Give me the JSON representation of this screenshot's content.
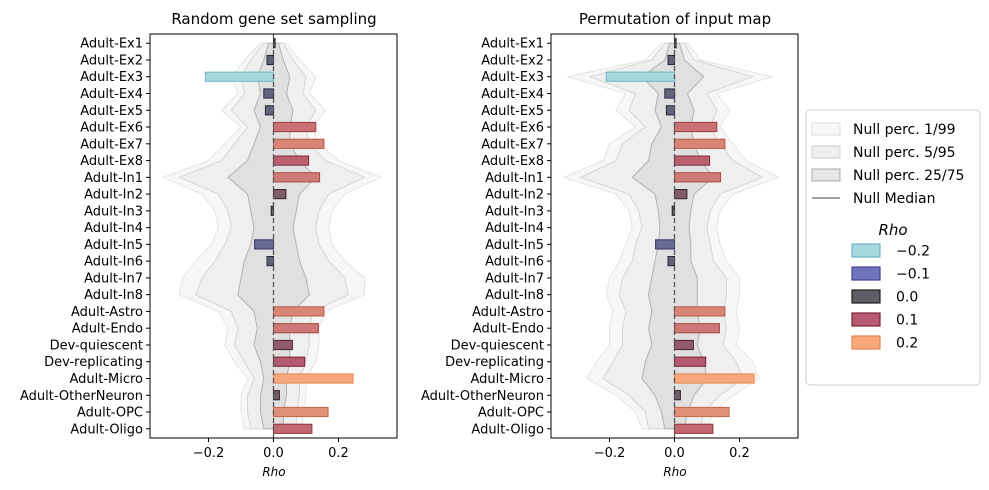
{
  "chart_data": [
    {
      "type": "bar",
      "orientation": "horizontal",
      "title": "Random gene set sampling",
      "xlabel": "Rho",
      "xlim": [
        -0.38,
        0.38
      ],
      "xticks": [
        -0.2,
        0.0,
        0.2
      ],
      "xtick_labels": [
        "−0.2",
        "0.0",
        "0.2"
      ],
      "categories": [
        "Adult-Ex1",
        "Adult-Ex2",
        "Adult-Ex3",
        "Adult-Ex4",
        "Adult-Ex5",
        "Adult-Ex6",
        "Adult-Ex7",
        "Adult-Ex8",
        "Adult-In1",
        "Adult-In2",
        "Adult-In3",
        "Adult-In4",
        "Adult-In5",
        "Adult-In6",
        "Adult-In7",
        "Adult-In8",
        "Adult-Astro",
        "Adult-Endo",
        "Dev-quiescent",
        "Dev-replicating",
        "Adult-Micro",
        "Adult-OtherNeuron",
        "Adult-OPC",
        "Adult-Oligo"
      ],
      "values": [
        0.005,
        -0.02,
        -0.21,
        -0.03,
        -0.025,
        0.13,
        0.155,
        0.108,
        0.142,
        0.038,
        -0.007,
        0.0,
        -0.058,
        -0.02,
        0.0,
        0.0,
        0.155,
        0.138,
        0.058,
        0.096,
        0.245,
        0.018,
        0.168,
        0.118
      ],
      "null_bands": {
        "p1_99": [
          [
            -0.04,
            0.04
          ],
          [
            -0.09,
            0.08
          ],
          [
            -0.13,
            0.13
          ],
          [
            -0.11,
            0.11
          ],
          [
            -0.16,
            0.16
          ],
          [
            -0.1,
            0.12
          ],
          [
            -0.15,
            0.14
          ],
          [
            -0.2,
            0.2
          ],
          [
            -0.34,
            0.33
          ],
          [
            -0.22,
            0.22
          ],
          [
            -0.18,
            0.18
          ],
          [
            -0.17,
            0.17
          ],
          [
            -0.19,
            0.18
          ],
          [
            -0.24,
            0.22
          ],
          [
            -0.28,
            0.28
          ],
          [
            -0.29,
            0.28
          ],
          [
            -0.17,
            0.16
          ],
          [
            -0.14,
            0.14
          ],
          [
            -0.15,
            0.14
          ],
          [
            -0.12,
            0.13
          ],
          [
            -0.08,
            0.1
          ],
          [
            -0.1,
            0.1
          ],
          [
            -0.1,
            0.09
          ],
          [
            -0.09,
            0.09
          ]
        ],
        "p5_95": [
          [
            -0.03,
            0.03
          ],
          [
            -0.07,
            0.06
          ],
          [
            -0.1,
            0.1
          ],
          [
            -0.09,
            0.09
          ],
          [
            -0.13,
            0.13
          ],
          [
            -0.08,
            0.1
          ],
          [
            -0.12,
            0.11
          ],
          [
            -0.16,
            0.16
          ],
          [
            -0.29,
            0.28
          ],
          [
            -0.17,
            0.17
          ],
          [
            -0.14,
            0.14
          ],
          [
            -0.13,
            0.13
          ],
          [
            -0.15,
            0.14
          ],
          [
            -0.18,
            0.17
          ],
          [
            -0.22,
            0.22
          ],
          [
            -0.24,
            0.23
          ],
          [
            -0.13,
            0.12
          ],
          [
            -0.11,
            0.11
          ],
          [
            -0.12,
            0.11
          ],
          [
            -0.09,
            0.1
          ],
          [
            -0.06,
            0.08
          ],
          [
            -0.08,
            0.08
          ],
          [
            -0.08,
            0.07
          ],
          [
            -0.07,
            0.07
          ]
        ],
        "p25_75": [
          [
            -0.015,
            0.015
          ],
          [
            -0.03,
            0.03
          ],
          [
            -0.05,
            0.05
          ],
          [
            -0.04,
            0.04
          ],
          [
            -0.06,
            0.06
          ],
          [
            -0.04,
            0.05
          ],
          [
            -0.06,
            0.05
          ],
          [
            -0.08,
            0.08
          ],
          [
            -0.14,
            0.13
          ],
          [
            -0.08,
            0.08
          ],
          [
            -0.07,
            0.07
          ],
          [
            -0.06,
            0.06
          ],
          [
            -0.07,
            0.07
          ],
          [
            -0.09,
            0.08
          ],
          [
            -0.1,
            0.1
          ],
          [
            -0.11,
            0.11
          ],
          [
            -0.06,
            0.06
          ],
          [
            -0.05,
            0.05
          ],
          [
            -0.06,
            0.05
          ],
          [
            -0.04,
            0.05
          ],
          [
            -0.03,
            0.04
          ],
          [
            -0.04,
            0.04
          ],
          [
            -0.04,
            0.03
          ],
          [
            -0.03,
            0.03
          ]
        ],
        "median": 0.0
      }
    },
    {
      "type": "bar",
      "orientation": "horizontal",
      "title": "Permutation of input map",
      "xlabel": "Rho",
      "xlim": [
        -0.38,
        0.38
      ],
      "xticks": [
        -0.2,
        0.0,
        0.2
      ],
      "xtick_labels": [
        "−0.2",
        "0.0",
        "0.2"
      ],
      "categories": [
        "Adult-Ex1",
        "Adult-Ex2",
        "Adult-Ex3",
        "Adult-Ex4",
        "Adult-Ex5",
        "Adult-Ex6",
        "Adult-Ex7",
        "Adult-Ex8",
        "Adult-In1",
        "Adult-In2",
        "Adult-In3",
        "Adult-In4",
        "Adult-In5",
        "Adult-In6",
        "Adult-In7",
        "Adult-In8",
        "Adult-Astro",
        "Adult-Endo",
        "Dev-quiescent",
        "Dev-replicating",
        "Adult-Micro",
        "Adult-OtherNeuron",
        "Adult-OPC",
        "Adult-Oligo"
      ],
      "values": [
        0.005,
        -0.02,
        -0.21,
        -0.03,
        -0.025,
        0.13,
        0.155,
        0.108,
        0.142,
        0.038,
        -0.007,
        0.0,
        -0.058,
        -0.02,
        0.0,
        0.0,
        0.155,
        0.138,
        0.058,
        0.096,
        0.245,
        0.018,
        0.168,
        0.118
      ],
      "null_bands": {
        "p1_99": [
          [
            -0.04,
            0.04
          ],
          [
            -0.09,
            0.08
          ],
          [
            -0.33,
            0.3
          ],
          [
            -0.15,
            0.13
          ],
          [
            -0.18,
            0.17
          ],
          [
            -0.12,
            0.14
          ],
          [
            -0.2,
            0.18
          ],
          [
            -0.22,
            0.22
          ],
          [
            -0.34,
            0.32
          ],
          [
            -0.18,
            0.18
          ],
          [
            -0.14,
            0.14
          ],
          [
            -0.13,
            0.13
          ],
          [
            -0.15,
            0.14
          ],
          [
            -0.17,
            0.16
          ],
          [
            -0.2,
            0.2
          ],
          [
            -0.21,
            0.2
          ],
          [
            -0.19,
            0.19
          ],
          [
            -0.2,
            0.2
          ],
          [
            -0.2,
            0.19
          ],
          [
            -0.24,
            0.24
          ],
          [
            -0.27,
            0.26
          ],
          [
            -0.18,
            0.18
          ],
          [
            -0.12,
            0.12
          ],
          [
            -0.1,
            0.1
          ]
        ],
        "p5_95": [
          [
            -0.03,
            0.03
          ],
          [
            -0.07,
            0.06
          ],
          [
            -0.26,
            0.24
          ],
          [
            -0.12,
            0.1
          ],
          [
            -0.14,
            0.13
          ],
          [
            -0.09,
            0.11
          ],
          [
            -0.16,
            0.14
          ],
          [
            -0.18,
            0.18
          ],
          [
            -0.29,
            0.27
          ],
          [
            -0.14,
            0.14
          ],
          [
            -0.11,
            0.11
          ],
          [
            -0.1,
            0.1
          ],
          [
            -0.12,
            0.11
          ],
          [
            -0.13,
            0.12
          ],
          [
            -0.16,
            0.16
          ],
          [
            -0.17,
            0.16
          ],
          [
            -0.15,
            0.15
          ],
          [
            -0.16,
            0.16
          ],
          [
            -0.16,
            0.15
          ],
          [
            -0.19,
            0.19
          ],
          [
            -0.22,
            0.21
          ],
          [
            -0.14,
            0.14
          ],
          [
            -0.09,
            0.09
          ],
          [
            -0.08,
            0.08
          ]
        ],
        "p25_75": [
          [
            -0.015,
            0.015
          ],
          [
            -0.03,
            0.03
          ],
          [
            -0.1,
            0.09
          ],
          [
            -0.05,
            0.04
          ],
          [
            -0.06,
            0.06
          ],
          [
            -0.04,
            0.05
          ],
          [
            -0.07,
            0.06
          ],
          [
            -0.08,
            0.08
          ],
          [
            -0.13,
            0.12
          ],
          [
            -0.06,
            0.06
          ],
          [
            -0.05,
            0.05
          ],
          [
            -0.045,
            0.045
          ],
          [
            -0.05,
            0.05
          ],
          [
            -0.06,
            0.05
          ],
          [
            -0.07,
            0.07
          ],
          [
            -0.08,
            0.07
          ],
          [
            -0.07,
            0.07
          ],
          [
            -0.08,
            0.08
          ],
          [
            -0.07,
            0.07
          ],
          [
            -0.09,
            0.09
          ],
          [
            -0.1,
            0.1
          ],
          [
            -0.06,
            0.06
          ],
          [
            -0.04,
            0.04
          ],
          [
            -0.03,
            0.03
          ]
        ],
        "median": 0.0
      }
    }
  ],
  "legend": {
    "placement": "right",
    "band_entries": [
      {
        "label": "Null perc. 1/99",
        "color": "#f5f5f5"
      },
      {
        "label": "Null perc. 5/95",
        "color": "#eeeeee"
      },
      {
        "label": "Null perc. 25/75",
        "color": "#e6e6e6"
      },
      {
        "label": "Null Median",
        "color": "#808080"
      }
    ],
    "colorbar_title": "Rho",
    "color_entries": [
      {
        "label": "−0.2",
        "color": "#a6d8dc",
        "edge": "#6fb6c4"
      },
      {
        "label": "−0.1",
        "color": "#6f74b8",
        "edge": "#3f4496"
      },
      {
        "label": "0.0",
        "color": "#5e5e66",
        "edge": "#1f1f1f"
      },
      {
        "label": "0.1",
        "color": "#b55a70",
        "edge": "#7a2238"
      },
      {
        "label": "0.2",
        "color": "#f6a87c",
        "edge": "#e6874f"
      }
    ]
  }
}
